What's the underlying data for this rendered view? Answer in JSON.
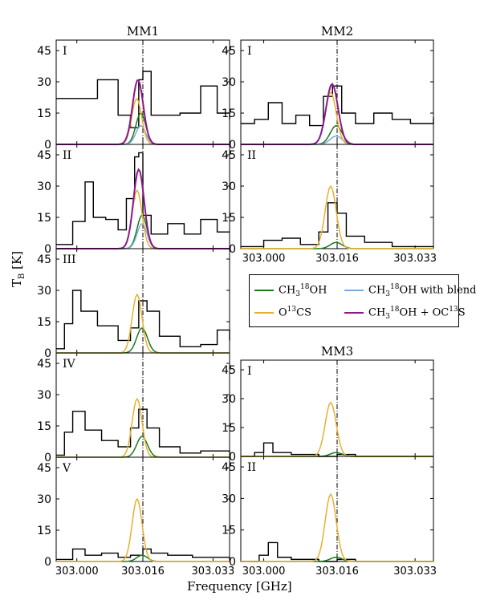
{
  "colors": {
    "observed": "#000000",
    "ch3_18oh": "#1a7a1a",
    "ch3_18oh_blend": "#7aaadd",
    "o13cs": "#e8b030",
    "sum": "#8a1a8a"
  },
  "columns": {
    "mm1": "MM1",
    "mm2": "MM2",
    "mm3": "MM3"
  },
  "axes": {
    "ylabel_main": "T",
    "ylabel_sub": "B",
    "ylabel_unit": " [K]",
    "xlabel": "Frequency [GHz]",
    "yticks": [
      "0",
      "15",
      "30",
      "45"
    ],
    "xticks": [
      "303.000",
      "303.016",
      "303.033"
    ]
  },
  "legend": {
    "ch3_18oh": {
      "a": "CH",
      "sub": "3",
      "sup": "18",
      "b": "OH"
    },
    "ch3_18oh_blend": {
      "a": "CH",
      "sub": "3",
      "sup": "18",
      "b": "OH with blend"
    },
    "o13cs": {
      "a": "O",
      "sup": "13",
      "b": "CS"
    },
    "sum": {
      "a": "CH",
      "sub": "3",
      "sup": "18",
      "b": "OH + OC",
      "sup2": "13",
      "c": "S"
    }
  },
  "chart_data": [
    {
      "type": "line",
      "panel": "MM1 I",
      "label": "I",
      "xlim": [
        302.995,
        303.037
      ],
      "ylim": [
        0,
        50
      ],
      "x": [
        302.995,
        303.0,
        303.005,
        303.01,
        303.013,
        303.015,
        303.016,
        303.018,
        303.021,
        303.025,
        303.03,
        303.034,
        303.037
      ],
      "series": [
        {
          "name": "observed",
          "values": [
            22,
            22,
            31,
            14,
            8,
            31,
            35,
            14,
            14,
            15,
            28,
            15,
            12
          ]
        },
        {
          "name": "ch3_18oh",
          "center": 303.0155,
          "peak": 15,
          "width": 0.0012
        },
        {
          "name": "ch3_18oh_blend",
          "center": 303.0155,
          "peak": 9,
          "width": 0.0012
        },
        {
          "name": "o13cs",
          "center": 303.0145,
          "peak": 22,
          "width": 0.0012
        },
        {
          "name": "sum",
          "center": 303.0148,
          "peak": 31,
          "width": 0.0013
        }
      ]
    },
    {
      "type": "line",
      "panel": "MM1 II",
      "label": "II",
      "xlim": [
        302.995,
        303.037
      ],
      "ylim": [
        0,
        50
      ],
      "x": [
        302.995,
        302.999,
        303.002,
        303.004,
        303.007,
        303.01,
        303.012,
        303.014,
        303.015,
        303.016,
        303.018,
        303.022,
        303.026,
        303.03,
        303.034
      ],
      "series": [
        {
          "name": "observed",
          "values": [
            2,
            13,
            32,
            15,
            14,
            9,
            24,
            44,
            46,
            16,
            7,
            12,
            7,
            14,
            8
          ]
        },
        {
          "name": "ch3_18oh",
          "center": 303.0158,
          "peak": 16,
          "width": 0.0012
        },
        {
          "name": "ch3_18oh_blend",
          "center": 303.0158,
          "peak": 12,
          "width": 0.0012
        },
        {
          "name": "o13cs",
          "center": 303.0146,
          "peak": 28,
          "width": 0.0012
        },
        {
          "name": "sum",
          "center": 303.015,
          "peak": 38,
          "width": 0.0013
        }
      ]
    },
    {
      "type": "line",
      "panel": "MM1 III",
      "label": "III",
      "xlim": [
        302.995,
        303.037
      ],
      "ylim": [
        0,
        50
      ],
      "x": [
        302.995,
        302.997,
        302.999,
        303.001,
        303.005,
        303.01,
        303.013,
        303.015,
        303.017,
        303.02,
        303.025,
        303.03,
        303.034,
        303.037
      ],
      "series": [
        {
          "name": "observed",
          "values": [
            2,
            14,
            30,
            20,
            13,
            6,
            12,
            25,
            20,
            8,
            3,
            4,
            11,
            6
          ]
        },
        {
          "name": "ch3_18oh",
          "center": 303.0158,
          "peak": 12,
          "width": 0.0013
        },
        {
          "name": "o13cs",
          "center": 303.0146,
          "peak": 28,
          "width": 0.0012
        }
      ]
    },
    {
      "type": "line",
      "panel": "MM1 IV",
      "label": "IV",
      "xlim": [
        302.995,
        303.037
      ],
      "ylim": [
        0,
        50
      ],
      "x": [
        302.995,
        302.997,
        302.999,
        303.002,
        303.006,
        303.01,
        303.013,
        303.015,
        303.017,
        303.02,
        303.025,
        303.03,
        303.037
      ],
      "series": [
        {
          "name": "observed",
          "values": [
            1,
            12,
            22,
            13,
            8,
            5,
            14,
            23,
            14,
            5,
            2,
            3,
            2
          ]
        },
        {
          "name": "ch3_18oh",
          "center": 303.0158,
          "peak": 10,
          "width": 0.0013
        },
        {
          "name": "o13cs",
          "center": 303.0146,
          "peak": 28,
          "width": 0.0012
        }
      ]
    },
    {
      "type": "line",
      "panel": "MM1 V",
      "label": "V",
      "xlim": [
        302.995,
        303.037
      ],
      "ylim": [
        0,
        50
      ],
      "x": [
        302.995,
        302.999,
        303.002,
        303.006,
        303.01,
        303.013,
        303.016,
        303.018,
        303.022,
        303.028,
        303.037
      ],
      "series": [
        {
          "name": "observed",
          "values": [
            1,
            6,
            3,
            4,
            2,
            3,
            6,
            4,
            3,
            2,
            1
          ]
        },
        {
          "name": "ch3_18oh",
          "center": 303.0158,
          "peak": 3,
          "width": 0.0013
        },
        {
          "name": "o13cs",
          "center": 303.0146,
          "peak": 30,
          "width": 0.0012
        }
      ]
    },
    {
      "type": "line",
      "panel": "MM2 I",
      "label": "I",
      "xlim": [
        302.995,
        303.037
      ],
      "ylim": [
        0,
        50
      ],
      "x": [
        302.995,
        302.998,
        303.001,
        303.004,
        303.007,
        303.01,
        303.013,
        303.015,
        303.017,
        303.02,
        303.024,
        303.028,
        303.032,
        303.037
      ],
      "series": [
        {
          "name": "observed",
          "values": [
            10,
            12,
            20,
            10,
            14,
            9,
            23,
            28,
            15,
            10,
            15,
            12,
            10,
            13
          ]
        },
        {
          "name": "ch3_18oh",
          "center": 303.0158,
          "peak": 9,
          "width": 0.0013
        },
        {
          "name": "ch3_18oh_blend",
          "center": 303.0158,
          "peak": 4,
          "width": 0.0013
        },
        {
          "name": "o13cs",
          "center": 303.0146,
          "peak": 25,
          "width": 0.0012
        },
        {
          "name": "sum",
          "center": 303.0149,
          "peak": 29,
          "width": 0.0013
        }
      ]
    },
    {
      "type": "line",
      "panel": "MM2 II",
      "label": "II",
      "xlim": [
        302.995,
        303.037
      ],
      "ylim": [
        0,
        50
      ],
      "x": [
        302.995,
        303.0,
        303.004,
        303.008,
        303.012,
        303.014,
        303.016,
        303.018,
        303.022,
        303.028,
        303.037
      ],
      "series": [
        {
          "name": "observed",
          "values": [
            1,
            4,
            5,
            2,
            8,
            22,
            17,
            6,
            3,
            1,
            1
          ]
        },
        {
          "name": "ch3_18oh",
          "center": 303.0158,
          "peak": 3,
          "width": 0.0013
        },
        {
          "name": "o13cs",
          "center": 303.0146,
          "peak": 30,
          "width": 0.0012
        }
      ]
    },
    {
      "type": "line",
      "panel": "MM3 I",
      "label": "I",
      "xlim": [
        302.995,
        303.037
      ],
      "ylim": [
        0,
        50
      ],
      "x": [
        302.995,
        302.998,
        303.0,
        303.002,
        303.006,
        303.012,
        303.016,
        303.02,
        303.03,
        303.037
      ],
      "series": [
        {
          "name": "observed",
          "values": [
            0,
            2,
            7,
            2,
            1,
            0,
            1,
            0,
            0,
            0
          ]
        },
        {
          "name": "ch3_18oh",
          "center": 303.0158,
          "peak": 2,
          "width": 0.0013
        },
        {
          "name": "o13cs",
          "center": 303.0146,
          "peak": 28,
          "width": 0.0012
        }
      ]
    },
    {
      "type": "line",
      "panel": "MM3 II",
      "label": "II",
      "xlim": [
        302.995,
        303.037
      ],
      "ylim": [
        0,
        50
      ],
      "x": [
        302.995,
        302.999,
        303.001,
        303.003,
        303.006,
        303.012,
        303.016,
        303.02,
        303.03,
        303.037
      ],
      "series": [
        {
          "name": "observed",
          "values": [
            0,
            3,
            9,
            2,
            1,
            0,
            1,
            0,
            0,
            0
          ]
        },
        {
          "name": "ch3_18oh",
          "center": 303.0158,
          "peak": 2,
          "width": 0.0013
        },
        {
          "name": "o13cs",
          "center": 303.0146,
          "peak": 32,
          "width": 0.0012
        }
      ]
    }
  ]
}
